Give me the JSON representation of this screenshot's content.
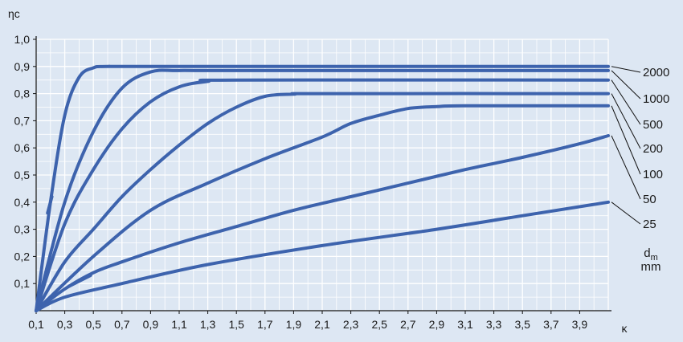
{
  "chart_data": {
    "type": "line",
    "ylabel": "ηc",
    "xlabel": "κ",
    "xlim": [
      0.1,
      4.1
    ],
    "ylim": [
      0,
      1.0
    ],
    "grid": true,
    "xticks": [
      "0,1",
      "0,3",
      "0,5",
      "0,7",
      "0,9",
      "1,1",
      "1,3",
      "1,5",
      "1,7",
      "1,9",
      "2,1",
      "2,3",
      "2,5",
      "2,7",
      "2,9",
      "3,1",
      "3,3",
      "3,5",
      "3,7",
      "3,9"
    ],
    "yticks": [
      "0,1",
      "0,2",
      "0,3",
      "0,4",
      "0,5",
      "0,6",
      "0,7",
      "0,8",
      "0,9",
      "1,0"
    ],
    "legend_title": "dm",
    "legend_title_sub": "m",
    "legend_unit": "mm",
    "line_color": "#3d63ad",
    "grid_color": "#ffffff",
    "background": "#dde7f3",
    "series": [
      {
        "name": "2000",
        "x": [
          0.1,
          0.2,
          0.3,
          0.4,
          0.5,
          0.6,
          1.0,
          4.1
        ],
        "y": [
          0.0,
          0.4,
          0.72,
          0.86,
          0.895,
          0.9,
          0.9,
          0.9
        ]
      },
      {
        "name": "1000",
        "x": [
          0.1,
          0.3,
          0.5,
          0.7,
          0.9,
          1.1,
          1.5,
          4.1
        ],
        "y": [
          0.0,
          0.4,
          0.66,
          0.82,
          0.88,
          0.885,
          0.885,
          0.885
        ]
      },
      {
        "name": "500",
        "x": [
          0.1,
          0.3,
          0.5,
          0.7,
          0.9,
          1.1,
          1.3,
          1.5,
          4.1
        ],
        "y": [
          0.0,
          0.32,
          0.52,
          0.67,
          0.77,
          0.825,
          0.845,
          0.85,
          0.85
        ]
      },
      {
        "name": "200",
        "x": [
          0.1,
          0.3,
          0.5,
          0.7,
          0.9,
          1.1,
          1.3,
          1.5,
          1.7,
          1.9,
          2.1,
          4.1
        ],
        "y": [
          0.0,
          0.18,
          0.3,
          0.42,
          0.52,
          0.61,
          0.69,
          0.75,
          0.79,
          0.798,
          0.8,
          0.8
        ]
      },
      {
        "name": "100",
        "x": [
          0.1,
          0.5,
          0.9,
          1.3,
          1.7,
          2.1,
          2.3,
          2.5,
          2.7,
          2.9,
          3.1,
          4.1
        ],
        "y": [
          0.0,
          0.2,
          0.37,
          0.47,
          0.56,
          0.64,
          0.69,
          0.72,
          0.745,
          0.752,
          0.755,
          0.755
        ]
      },
      {
        "name": "50",
        "x": [
          0.1,
          0.3,
          0.5,
          0.7,
          1.1,
          1.5,
          1.9,
          2.3,
          2.7,
          3.1,
          3.5,
          3.9,
          4.1
        ],
        "y": [
          0.0,
          0.08,
          0.14,
          0.18,
          0.25,
          0.31,
          0.37,
          0.42,
          0.47,
          0.52,
          0.565,
          0.615,
          0.645
        ]
      },
      {
        "name": "25",
        "x": [
          0.1,
          0.3,
          0.7,
          1.3,
          2.1,
          2.9,
          3.5,
          4.1
        ],
        "y": [
          0.0,
          0.05,
          0.1,
          0.17,
          0.24,
          0.3,
          0.35,
          0.4
        ]
      }
    ]
  }
}
